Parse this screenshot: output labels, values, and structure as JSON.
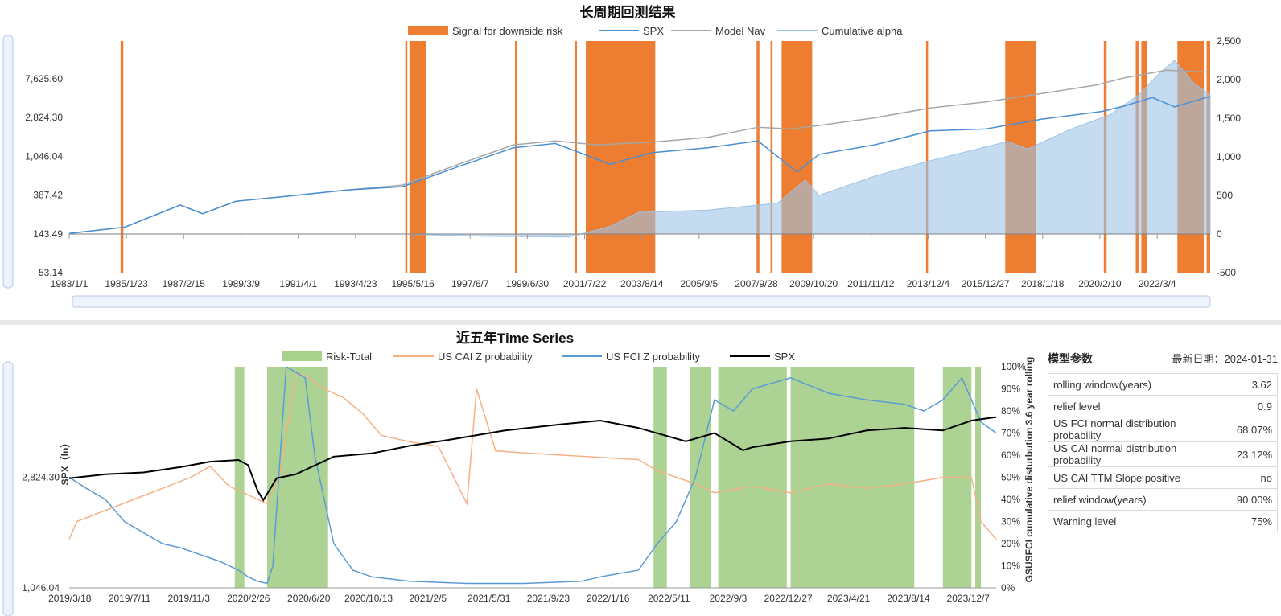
{
  "top_chart": {
    "title": "长周期回测结果",
    "legend": [
      {
        "name": "Signal for downside risk",
        "type": "block",
        "color": "#ed7d31"
      },
      {
        "name": "SPX",
        "type": "line",
        "color": "#4a8fd4"
      },
      {
        "name": "Model Nav",
        "type": "line",
        "color": "#a6a6a6"
      },
      {
        "name": "Cumulative alpha",
        "type": "line",
        "color": "#9dc3e6"
      }
    ],
    "y_left_ticks": [
      "7,625.60",
      "2,824.30",
      "1,046.04",
      "387.42",
      "143.49",
      "53.14"
    ],
    "y_right_ticks": [
      "2,500",
      "2,000",
      "1,500",
      "1,000",
      "500",
      "0",
      "-500"
    ],
    "x_ticks": [
      "1983/1/1",
      "1985/1/23",
      "1987/2/15",
      "1989/3/9",
      "1991/4/1",
      "1993/4/23",
      "1995/5/16",
      "1997/6/7",
      "1999/6/30",
      "2001/7/22",
      "2003/8/14",
      "2005/9/5",
      "2007/9/28",
      "2009/10/20",
      "2011/11/12",
      "2013/12/4",
      "2015/12/27",
      "2018/1/18",
      "2020/2/10",
      "2022/3/4"
    ]
  },
  "bottom_chart": {
    "title": "近五年Time Series",
    "legend": [
      {
        "name": "Risk-Total",
        "type": "block",
        "color": "#a9d18e"
      },
      {
        "name": "US CAI Z probability",
        "type": "line",
        "color": "#f4b183"
      },
      {
        "name": "US FCI Z probability",
        "type": "line",
        "color": "#5b9bd5"
      },
      {
        "name": "SPX",
        "type": "line",
        "color": "#000000"
      }
    ],
    "y_left_label": "SPX（ln）",
    "y_left_ticks": [
      "2,824.30",
      "1,046.04"
    ],
    "y_right_label": "GSUSFCI cumulative disturbution 3.6 year rolling",
    "y_right_ticks": [
      "100%",
      "90%",
      "80%",
      "70%",
      "60%",
      "50%",
      "40%",
      "30%",
      "20%",
      "10%",
      "0%"
    ],
    "x_ticks": [
      "2019/3/18",
      "2019/7/11",
      "2019/11/3",
      "2020/2/26",
      "2020/6/20",
      "2020/10/13",
      "2021/2/5",
      "2021/5/31",
      "2021/9/23",
      "2022/1/16",
      "2022/5/11",
      "2022/9/3",
      "2022/12/27",
      "2023/4/21",
      "2023/8/14",
      "2023/12/7"
    ]
  },
  "params": {
    "title": "模型参数",
    "date_label": "最新日期：",
    "date": "2024-01-31",
    "rows": [
      {
        "label": "rolling window(years)",
        "value": "3.62"
      },
      {
        "label": "relief level",
        "value": "0.9"
      },
      {
        "label": "US FCI normal distribution probability",
        "value": "68.07%"
      },
      {
        "label": "US CAI normal distribution probability",
        "value": "23.12%"
      },
      {
        "label": "US CAI TTM Slope positive",
        "value": "no"
      },
      {
        "label": "relief window(years)",
        "value": "90.00%"
      },
      {
        "label": "Warning level",
        "value": "75%"
      }
    ]
  },
  "chart_data": [
    {
      "type": "line",
      "title": "长周期回测结果",
      "x_range": [
        "1983/1/1",
        "2024/1/31"
      ],
      "y_left_scale": "log",
      "y_left_range": [
        53.14,
        20000
      ],
      "y_right_range": [
        -500,
        2500
      ],
      "signal_periods": [
        [
          1984.85,
          1984.95
        ],
        [
          1995.1,
          1995.15
        ],
        [
          1995.25,
          1995.85
        ],
        [
          1999.05,
          1999.12
        ],
        [
          2001.2,
          2001.28
        ],
        [
          2001.6,
          2004.1
        ],
        [
          2007.75,
          2007.85
        ],
        [
          2008.25,
          2008.32
        ],
        [
          2008.65,
          2009.75
        ],
        [
          2013.85,
          2013.92
        ],
        [
          2016.7,
          2017.8
        ],
        [
          2020.25,
          2020.35
        ],
        [
          2021.4,
          2021.5
        ],
        [
          2021.6,
          2021.8
        ],
        [
          2022.9,
          2023.85
        ],
        [
          2023.95,
          2024.08
        ]
      ],
      "series": [
        {
          "name": "SPX",
          "axis": "left",
          "x": [
            1983,
            1985,
            1987,
            1987.8,
            1989,
            1991,
            1993,
            1995,
            1997,
            1999,
            2000.5,
            2002.5,
            2003,
            2004,
            2006,
            2007.8,
            2009.2,
            2010,
            2012,
            2014,
            2016,
            2018,
            2020.2,
            2021,
            2022,
            2022.8,
            2024.08
          ],
          "y": [
            145,
            170,
            300,
            240,
            330,
            380,
            440,
            480,
            800,
            1300,
            1450,
            850,
            950,
            1150,
            1300,
            1550,
            700,
            1100,
            1400,
            2000,
            2100,
            2700,
            3300,
            3800,
            4700,
            3700,
            4850
          ]
        },
        {
          "name": "Model Nav",
          "axis": "left",
          "x": [
            1983,
            1985,
            1987,
            1987.8,
            1989,
            1991,
            1993,
            1995,
            1997,
            1999,
            2000.5,
            2002,
            2004,
            2006,
            2007.8,
            2009,
            2010,
            2012,
            2014,
            2016,
            2018,
            2020,
            2021,
            2022.5,
            2024.08
          ],
          "y": [
            145,
            170,
            300,
            240,
            330,
            380,
            440,
            500,
            850,
            1400,
            1550,
            1400,
            1500,
            1700,
            2200,
            2100,
            2300,
            2800,
            3600,
            4200,
            5200,
            6500,
            7800,
            9500,
            9000
          ]
        },
        {
          "name": "Cumulative alpha",
          "axis": "right",
          "x": [
            1983,
            1995,
            1998,
            2001,
            2002.5,
            2003.5,
            2006,
            2008.5,
            2009.5,
            2010,
            2012,
            2014,
            2016.8,
            2017.5,
            2019,
            2020.5,
            2021.5,
            2022.3,
            2022.8,
            2023.5,
            2024.08
          ],
          "y": [
            0,
            0,
            -30,
            -40,
            100,
            280,
            310,
            400,
            700,
            500,
            750,
            950,
            1200,
            1100,
            1350,
            1550,
            1800,
            2100,
            2250,
            1950,
            1800
          ]
        }
      ]
    },
    {
      "type": "line",
      "title": "近五年Time Series",
      "x_range": [
        "2019/3/18",
        "2024/1/31"
      ],
      "y_left_scale": "log",
      "y_left_range": [
        1046.04,
        7625.6
      ],
      "y_right_range": [
        0,
        100
      ],
      "risk_total_periods": [
        [
          2020.08,
          2020.13
        ],
        [
          2020.25,
          2020.57
        ],
        [
          2022.28,
          2022.35
        ],
        [
          2022.47,
          2022.58
        ],
        [
          2022.62,
          2022.98
        ],
        [
          2023.0,
          2023.65
        ],
        [
          2023.8,
          2023.95
        ],
        [
          2023.97,
          2024.0
        ]
      ],
      "series": [
        {
          "name": "US CAI Z probability",
          "axis": "right",
          "x": [
            2019.21,
            2019.25,
            2019.4,
            2019.55,
            2019.7,
            2019.85,
            2019.95,
            2020.05,
            2020.15,
            2020.25,
            2020.32,
            2020.4,
            2020.45,
            2020.55,
            2020.65,
            2020.75,
            2020.85,
            2021.0,
            2021.15,
            2021.3,
            2021.35,
            2021.45,
            2021.6,
            2021.8,
            2022.0,
            2022.2,
            2022.3,
            2022.4,
            2022.5,
            2022.6,
            2022.8,
            2023.0,
            2023.2,
            2023.4,
            2023.6,
            2023.8,
            2023.95,
            2024.0,
            2024.08
          ],
          "y": [
            22,
            30,
            35,
            40,
            45,
            50,
            55,
            46,
            42,
            38,
            52,
            97,
            96,
            90,
            86,
            79,
            69,
            66,
            64,
            38,
            90,
            62,
            61,
            60,
            59,
            58,
            53,
            50,
            47,
            43,
            46,
            43,
            47,
            45,
            47,
            50,
            50,
            30,
            22
          ]
        },
        {
          "name": "US FCI Z probability",
          "axis": "right",
          "x": [
            2019.21,
            2019.3,
            2019.4,
            2019.5,
            2019.6,
            2019.7,
            2019.8,
            2019.9,
            2020.0,
            2020.1,
            2020.15,
            2020.2,
            2020.25,
            2020.28,
            2020.35,
            2020.45,
            2020.5,
            2020.6,
            2020.7,
            2020.8,
            2021.0,
            2021.3,
            2021.6,
            2021.9,
            2022.0,
            2022.2,
            2022.3,
            2022.4,
            2022.5,
            2022.6,
            2022.7,
            2022.8,
            2023.0,
            2023.2,
            2023.4,
            2023.6,
            2023.7,
            2023.8,
            2023.9,
            2024.0,
            2024.08
          ],
          "y": [
            50,
            45,
            40,
            30,
            25,
            20,
            18,
            15,
            12,
            8,
            5,
            3,
            2,
            10,
            100,
            95,
            60,
            20,
            8,
            5,
            3,
            2,
            2,
            3,
            5,
            8,
            20,
            30,
            50,
            85,
            80,
            90,
            95,
            88,
            85,
            83,
            80,
            85,
            95,
            75,
            70
          ]
        },
        {
          "name": "SPX",
          "axis": "left",
          "x": [
            2019.21,
            2019.4,
            2019.6,
            2019.8,
            2019.95,
            2020.1,
            2020.15,
            2020.2,
            2020.23,
            2020.3,
            2020.4,
            2020.6,
            2020.8,
            2021.0,
            2021.2,
            2021.5,
            2021.8,
            2022.0,
            2022.2,
            2022.45,
            2022.6,
            2022.75,
            2022.8,
            2023.0,
            2023.2,
            2023.4,
            2023.6,
            2023.8,
            2023.95,
            2024.08
          ],
          "y": [
            2800,
            2900,
            2950,
            3100,
            3250,
            3300,
            3150,
            2500,
            2300,
            2800,
            2900,
            3400,
            3500,
            3750,
            3950,
            4300,
            4550,
            4700,
            4400,
            3900,
            4200,
            3600,
            3700,
            3900,
            4000,
            4300,
            4400,
            4300,
            4700,
            4850
          ]
        }
      ]
    }
  ]
}
